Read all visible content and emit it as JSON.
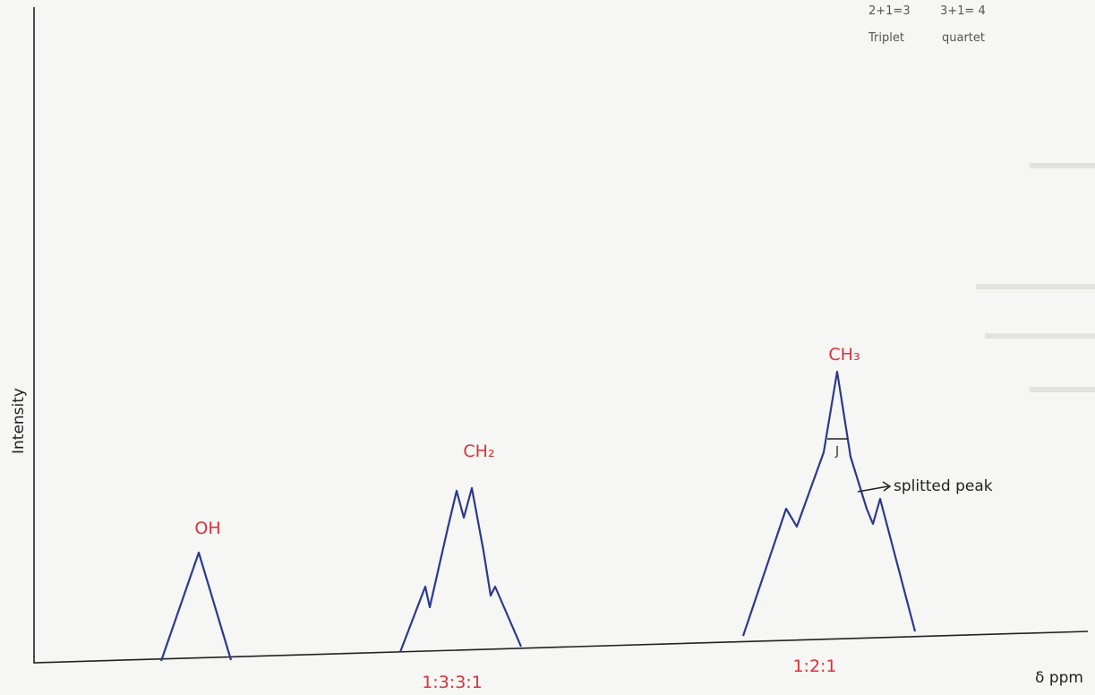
{
  "axes": {
    "y_label": "Intensity",
    "x_label": "δ ppm"
  },
  "peaks": [
    {
      "label": "OH"
    },
    {
      "label": "CH₂",
      "ratio": "1:3:3:1"
    },
    {
      "label": "CH₃",
      "ratio": "1:2:1",
      "coupling": "J",
      "annotation": "splitted peak"
    }
  ],
  "notes": [
    {
      "sum": "2+1=3",
      "name": "Triplet"
    },
    {
      "sum": "3+1= 4",
      "name": "quartet"
    }
  ]
}
